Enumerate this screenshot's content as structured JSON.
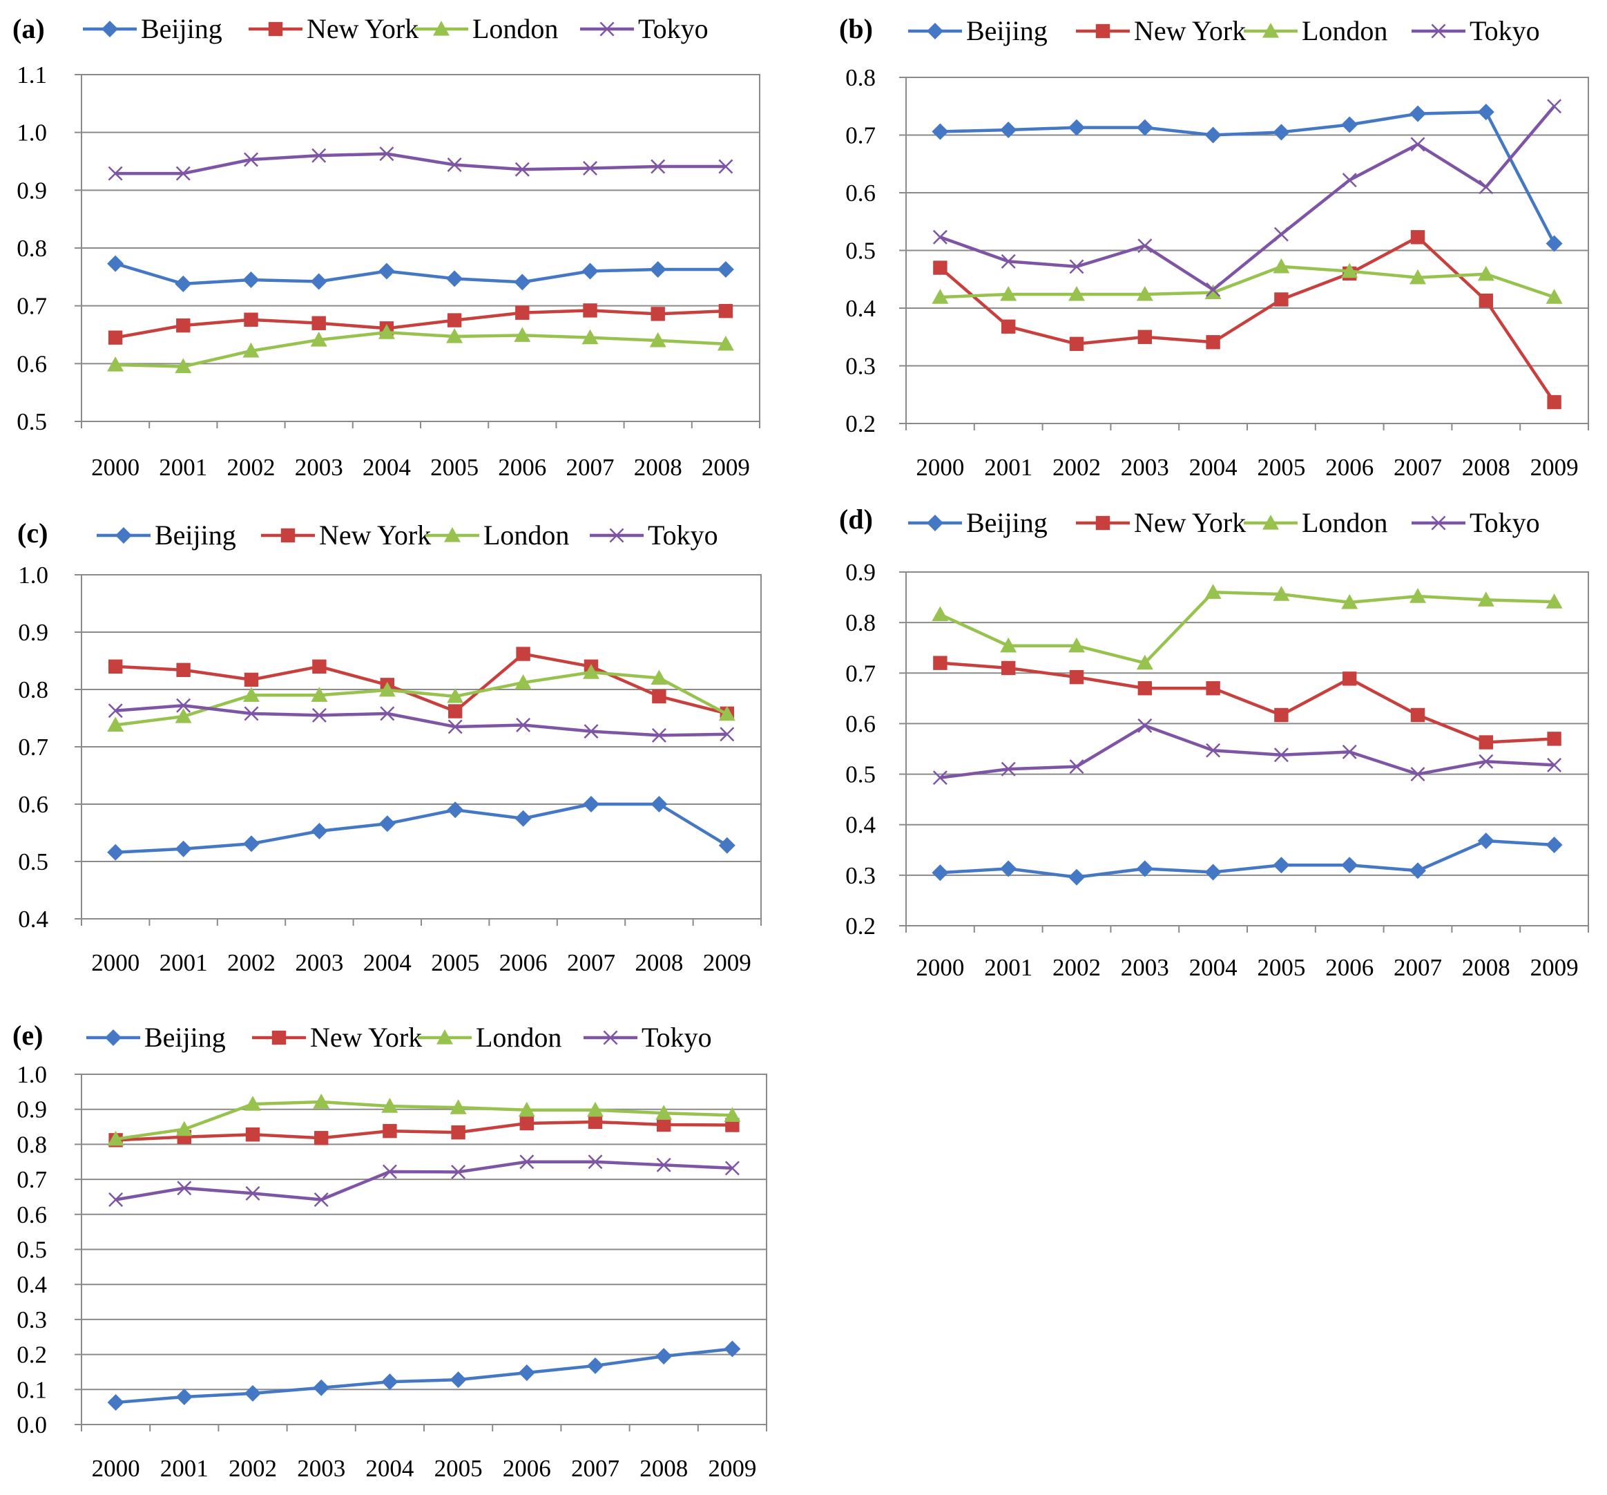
{
  "chart_data": [
    {
      "type": "line",
      "panel_label": "(a)",
      "categories": [
        "2000",
        "2001",
        "2002",
        "2003",
        "2004",
        "2005",
        "2006",
        "2007",
        "2008",
        "2009"
      ],
      "ylim": [
        0.5,
        1.1
      ],
      "yticks": [
        "0.5",
        "0.6",
        "0.7",
        "0.8",
        "0.9",
        "1.0",
        "1.1"
      ],
      "ytick_values": [
        0.5,
        0.6,
        0.7,
        0.8,
        0.9,
        1.0,
        1.1
      ],
      "grid": true,
      "legend": "top",
      "series": [
        {
          "name": "Beijing",
          "values": [
            0.773,
            0.738,
            0.745,
            0.742,
            0.76,
            0.747,
            0.741,
            0.76,
            0.763,
            0.763
          ]
        },
        {
          "name": "New York",
          "values": [
            0.645,
            0.666,
            0.676,
            0.67,
            0.661,
            0.675,
            0.688,
            0.692,
            0.686,
            0.691
          ]
        },
        {
          "name": "London",
          "values": [
            0.598,
            0.595,
            0.622,
            0.641,
            0.654,
            0.647,
            0.649,
            0.645,
            0.64,
            0.634
          ]
        },
        {
          "name": "Tokyo",
          "values": [
            0.929,
            0.929,
            0.953,
            0.96,
            0.963,
            0.944,
            0.936,
            0.938,
            0.941,
            0.941
          ]
        }
      ]
    },
    {
      "type": "line",
      "panel_label": "(b)",
      "categories": [
        "2000",
        "2001",
        "2002",
        "2003",
        "2004",
        "2005",
        "2006",
        "2007",
        "2008",
        "2009"
      ],
      "ylim": [
        0.2,
        0.8
      ],
      "yticks": [
        "0.2",
        "0.3",
        "0.4",
        "0.5",
        "0.6",
        "0.7",
        "0.8"
      ],
      "ytick_values": [
        0.2,
        0.3,
        0.4,
        0.5,
        0.6,
        0.7,
        0.8
      ],
      "grid": true,
      "legend": "top",
      "series": [
        {
          "name": "Beijing",
          "values": [
            0.706,
            0.709,
            0.713,
            0.713,
            0.7,
            0.705,
            0.718,
            0.737,
            0.74,
            0.512
          ]
        },
        {
          "name": "New York",
          "values": [
            0.47,
            0.368,
            0.338,
            0.35,
            0.341,
            0.415,
            0.46,
            0.523,
            0.413,
            0.237
          ]
        },
        {
          "name": "London",
          "values": [
            0.419,
            0.424,
            0.424,
            0.424,
            0.427,
            0.472,
            0.464,
            0.453,
            0.459,
            0.419
          ]
        },
        {
          "name": "Tokyo",
          "values": [
            0.523,
            0.481,
            0.472,
            0.508,
            0.432,
            0.528,
            0.622,
            0.684,
            0.61,
            0.75
          ]
        }
      ]
    },
    {
      "type": "line",
      "panel_label": "(c)",
      "categories": [
        "2000",
        "2001",
        "2002",
        "2003",
        "2004",
        "2005",
        "2006",
        "2007",
        "2008",
        "2009"
      ],
      "ylim": [
        0.4,
        1.0
      ],
      "yticks": [
        "0.4",
        "0.5",
        "0.6",
        "0.7",
        "0.8",
        "0.9",
        "1.0"
      ],
      "ytick_values": [
        0.4,
        0.5,
        0.6,
        0.7,
        0.8,
        0.9,
        1.0
      ],
      "grid": true,
      "legend": "top",
      "series": [
        {
          "name": "Beijing",
          "values": [
            0.516,
            0.522,
            0.531,
            0.553,
            0.566,
            0.59,
            0.575,
            0.6,
            0.6,
            0.528
          ]
        },
        {
          "name": "New York",
          "values": [
            0.84,
            0.834,
            0.817,
            0.84,
            0.808,
            0.762,
            0.862,
            0.84,
            0.788,
            0.758
          ]
        },
        {
          "name": "London",
          "values": [
            0.738,
            0.753,
            0.79,
            0.79,
            0.799,
            0.788,
            0.812,
            0.83,
            0.82,
            0.757
          ]
        },
        {
          "name": "Tokyo",
          "values": [
            0.763,
            0.772,
            0.758,
            0.755,
            0.758,
            0.735,
            0.738,
            0.727,
            0.72,
            0.722
          ]
        }
      ]
    },
    {
      "type": "line",
      "panel_label": "(d)",
      "categories": [
        "2000",
        "2001",
        "2002",
        "2003",
        "2004",
        "2005",
        "2006",
        "2007",
        "2008",
        "2009"
      ],
      "ylim": [
        0.2,
        0.9
      ],
      "yticks": [
        "0.2",
        "0.3",
        "0.4",
        "0.5",
        "0.6",
        "0.7",
        "0.8",
        "0.9"
      ],
      "ytick_values": [
        0.2,
        0.3,
        0.4,
        0.5,
        0.6,
        0.7,
        0.8,
        0.9
      ],
      "grid": true,
      "legend": "top",
      "series": [
        {
          "name": "Beijing",
          "values": [
            0.305,
            0.313,
            0.296,
            0.313,
            0.306,
            0.32,
            0.32,
            0.309,
            0.368,
            0.36
          ]
        },
        {
          "name": "New York",
          "values": [
            0.72,
            0.71,
            0.692,
            0.67,
            0.67,
            0.617,
            0.689,
            0.617,
            0.563,
            0.57
          ]
        },
        {
          "name": "London",
          "values": [
            0.816,
            0.754,
            0.754,
            0.72,
            0.86,
            0.856,
            0.84,
            0.852,
            0.845,
            0.841
          ]
        },
        {
          "name": "Tokyo",
          "values": [
            0.493,
            0.51,
            0.515,
            0.596,
            0.547,
            0.538,
            0.544,
            0.5,
            0.525,
            0.518
          ]
        }
      ]
    },
    {
      "type": "line",
      "panel_label": "(e)",
      "categories": [
        "2000",
        "2001",
        "2002",
        "2003",
        "2004",
        "2005",
        "2006",
        "2007",
        "2008",
        "2009"
      ],
      "ylim": [
        0.0,
        1.0
      ],
      "yticks": [
        "0.0",
        "0.1",
        "0.2",
        "0.3",
        "0.4",
        "0.5",
        "0.6",
        "0.7",
        "0.8",
        "0.9",
        "1.0"
      ],
      "ytick_values": [
        0.0,
        0.1,
        0.2,
        0.3,
        0.4,
        0.5,
        0.6,
        0.7,
        0.8,
        0.9,
        1.0
      ],
      "grid": true,
      "legend": "top",
      "series": [
        {
          "name": "Beijing",
          "values": [
            0.063,
            0.079,
            0.089,
            0.105,
            0.122,
            0.128,
            0.148,
            0.168,
            0.195,
            0.216
          ]
        },
        {
          "name": "New York",
          "values": [
            0.812,
            0.821,
            0.828,
            0.818,
            0.838,
            0.834,
            0.86,
            0.864,
            0.856,
            0.855
          ]
        },
        {
          "name": "London",
          "values": [
            0.815,
            0.843,
            0.915,
            0.921,
            0.909,
            0.905,
            0.898,
            0.898,
            0.889,
            0.883
          ]
        },
        {
          "name": "Tokyo",
          "values": [
            0.642,
            0.675,
            0.66,
            0.642,
            0.722,
            0.721,
            0.75,
            0.75,
            0.741,
            0.732
          ]
        }
      ]
    }
  ],
  "series_style": {
    "Beijing": {
      "color": "#4477C4",
      "marker": "diamond-icon"
    },
    "New York": {
      "color": "#C8403D",
      "marker": "square-icon"
    },
    "London": {
      "color": "#97C24E",
      "marker": "triangle-icon"
    },
    "Tokyo": {
      "color": "#7E55A4",
      "marker": "x-icon"
    }
  }
}
